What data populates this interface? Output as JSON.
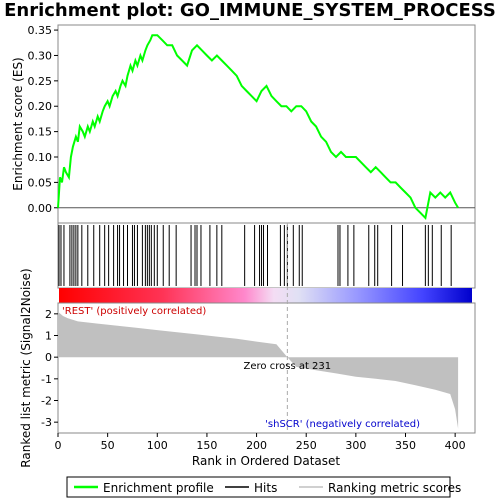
{
  "chart_data": {
    "type": "line",
    "title": "Enrichment plot: GO_IMMUNE_SYSTEM_PROCESS",
    "es_panel": {
      "ylabel": "Enrichment score (ES)",
      "ylim": [
        -0.03,
        0.36
      ],
      "yticks": [
        0.0,
        0.05,
        0.1,
        0.15,
        0.2,
        0.25,
        0.3,
        0.35
      ],
      "ytick_labels": [
        "0.00",
        "0.05",
        "0.10",
        "0.15",
        "0.20",
        "0.25",
        "0.30",
        "0.35"
      ],
      "series": [
        {
          "name": "Enrichment profile",
          "color": "#00ff00",
          "x": [
            0,
            2,
            4,
            6,
            8,
            11,
            13,
            15,
            18,
            20,
            22,
            25,
            27,
            30,
            32,
            35,
            37,
            40,
            42,
            45,
            47,
            50,
            52,
            55,
            58,
            60,
            63,
            65,
            68,
            70,
            73,
            75,
            78,
            80,
            83,
            85,
            88,
            90,
            93,
            95,
            98,
            100,
            105,
            110,
            115,
            120,
            125,
            130,
            135,
            140,
            145,
            150,
            155,
            160,
            165,
            170,
            175,
            180,
            185,
            190,
            195,
            200,
            205,
            210,
            215,
            220,
            225,
            230,
            235,
            240,
            245,
            250,
            255,
            260,
            265,
            270,
            275,
            280,
            285,
            290,
            295,
            300,
            305,
            310,
            315,
            320,
            325,
            330,
            335,
            340,
            345,
            350,
            355,
            360,
            365,
            370,
            375,
            380,
            385,
            390,
            395,
            400,
            403
          ],
          "y": [
            0.0,
            0.06,
            0.05,
            0.08,
            0.07,
            0.06,
            0.1,
            0.12,
            0.14,
            0.13,
            0.16,
            0.15,
            0.14,
            0.16,
            0.15,
            0.17,
            0.16,
            0.18,
            0.17,
            0.19,
            0.2,
            0.21,
            0.2,
            0.22,
            0.23,
            0.22,
            0.24,
            0.25,
            0.24,
            0.26,
            0.28,
            0.27,
            0.29,
            0.28,
            0.3,
            0.29,
            0.31,
            0.32,
            0.33,
            0.34,
            0.34,
            0.34,
            0.33,
            0.32,
            0.32,
            0.3,
            0.29,
            0.28,
            0.31,
            0.32,
            0.31,
            0.3,
            0.29,
            0.3,
            0.29,
            0.28,
            0.27,
            0.26,
            0.24,
            0.23,
            0.22,
            0.21,
            0.23,
            0.24,
            0.22,
            0.21,
            0.2,
            0.2,
            0.19,
            0.2,
            0.2,
            0.19,
            0.17,
            0.16,
            0.14,
            0.13,
            0.11,
            0.1,
            0.11,
            0.1,
            0.1,
            0.1,
            0.09,
            0.08,
            0.07,
            0.08,
            0.07,
            0.06,
            0.05,
            0.05,
            0.04,
            0.03,
            0.02,
            0.0,
            -0.01,
            -0.02,
            0.03,
            0.02,
            0.03,
            0.02,
            0.03,
            0.01,
            0.0
          ]
        }
      ]
    },
    "hits_panel": {
      "legend_name": "Hits",
      "hit_ranks": [
        1,
        3,
        6,
        12,
        14,
        16,
        18,
        20,
        24,
        30,
        36,
        42,
        47,
        51,
        56,
        60,
        62,
        66,
        70,
        75,
        77,
        80,
        85,
        88,
        90,
        92,
        94,
        97,
        100,
        106,
        112,
        119,
        134,
        138,
        140,
        144,
        153,
        160,
        165,
        188,
        198,
        203,
        205,
        207,
        211,
        224,
        228,
        231,
        237,
        243,
        246,
        282,
        284,
        292,
        298,
        313,
        319,
        322,
        336,
        347,
        370,
        373,
        377,
        386,
        396
      ]
    },
    "metric_panel": {
      "legend_name": "Ranking metric scores",
      "ylabel": "Ranked list metric (Signal2Noise)",
      "ylim": [
        -3.5,
        2.5
      ],
      "yticks": [
        -3,
        -2,
        -1,
        0,
        1,
        2
      ],
      "ytick_labels": [
        "-3",
        "-2",
        "-1",
        "0",
        "1",
        "2"
      ],
      "ranks": [
        0,
        5,
        10,
        20,
        30,
        40,
        60,
        80,
        100,
        120,
        140,
        160,
        180,
        200,
        220,
        231,
        240,
        260,
        280,
        300,
        320,
        340,
        360,
        380,
        395,
        400,
        403
      ],
      "values": [
        2.1,
        1.9,
        1.8,
        1.65,
        1.6,
        1.55,
        1.45,
        1.35,
        1.25,
        1.15,
        1.05,
        0.95,
        0.85,
        0.72,
        0.6,
        0.0,
        -0.45,
        -0.6,
        -0.75,
        -0.9,
        -1.0,
        -1.1,
        -1.3,
        -1.5,
        -1.7,
        -2.4,
        -3.3
      ],
      "annotations": {
        "positive": "'REST' (positively correlated)",
        "negative": "'shSCR' (negatively correlated)",
        "zero_cross": "Zero cross at 231"
      }
    },
    "xlabel": "Rank in Ordered Dataset",
    "xlim": [
      0,
      420
    ],
    "xticks": [
      0,
      50,
      100,
      150,
      200,
      250,
      300,
      350,
      400
    ],
    "xtick_labels": [
      "0",
      "50",
      "100",
      "150",
      "200",
      "250",
      "300",
      "350",
      "400"
    ],
    "zero_cross_rank": 231,
    "legend": {
      "placement": "bottom",
      "entries": [
        "Enrichment profile",
        "Hits",
        "Ranking metric scores"
      ]
    }
  }
}
